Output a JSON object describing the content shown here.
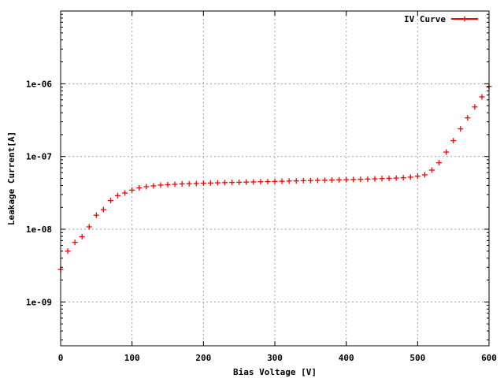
{
  "chart_data": {
    "type": "scatter",
    "title": "",
    "xlabel": "Bias Voltage [V]",
    "ylabel": "Leakage Current[A]",
    "xlim": [
      0,
      600
    ],
    "ylim": [
      2.5e-10,
      1e-05
    ],
    "yscale": "log",
    "grid": true,
    "legend_position": "top-right",
    "x_ticks": [
      0,
      100,
      200,
      300,
      400,
      500,
      600
    ],
    "x_tick_labels": [
      "0",
      "100",
      "200",
      "300",
      "400",
      "500",
      "600"
    ],
    "y_ticks": [
      1e-09,
      1e-08,
      1e-07,
      1e-06
    ],
    "y_tick_labels": [
      "1e-09",
      "1e-08",
      "1e-07",
      "1e-06"
    ],
    "series": [
      {
        "name": "IV Curve",
        "color": "#ff0000",
        "marker": "plus",
        "x": [
          0,
          10,
          20,
          30,
          40,
          50,
          60,
          70,
          80,
          90,
          100,
          110,
          120,
          130,
          140,
          150,
          160,
          170,
          180,
          190,
          200,
          210,
          220,
          230,
          240,
          250,
          260,
          270,
          280,
          290,
          300,
          310,
          320,
          330,
          340,
          350,
          360,
          370,
          380,
          390,
          400,
          410,
          420,
          430,
          440,
          450,
          460,
          470,
          480,
          490,
          500,
          510,
          520,
          530,
          540,
          550,
          560,
          570,
          580,
          590,
          600
        ],
        "y": [
          2.8e-09,
          5e-09,
          6.6e-09,
          7.9e-09,
          1.08e-08,
          1.56e-08,
          1.86e-08,
          2.48e-08,
          2.9e-08,
          3.15e-08,
          3.45e-08,
          3.7e-08,
          3.85e-08,
          3.95e-08,
          4.05e-08,
          4.1e-08,
          4.15e-08,
          4.2e-08,
          4.22e-08,
          4.25e-08,
          4.3e-08,
          4.32e-08,
          4.35e-08,
          4.38e-08,
          4.4e-08,
          4.42e-08,
          4.45e-08,
          4.47e-08,
          4.5e-08,
          4.52e-08,
          4.55e-08,
          4.57e-08,
          4.6e-08,
          4.62e-08,
          4.65e-08,
          4.67e-08,
          4.7e-08,
          4.72e-08,
          4.75e-08,
          4.78e-08,
          4.8e-08,
          4.83e-08,
          4.86e-08,
          4.9e-08,
          4.93e-08,
          4.97e-08,
          5e-08,
          5.05e-08,
          5.1e-08,
          5.2e-08,
          5.35e-08,
          5.6e-08,
          6.5e-08,
          8.2e-08,
          1.15e-07,
          1.65e-07,
          2.4e-07,
          3.4e-07,
          4.8e-07,
          6.6e-07,
          9.2e-07
        ]
      }
    ]
  }
}
